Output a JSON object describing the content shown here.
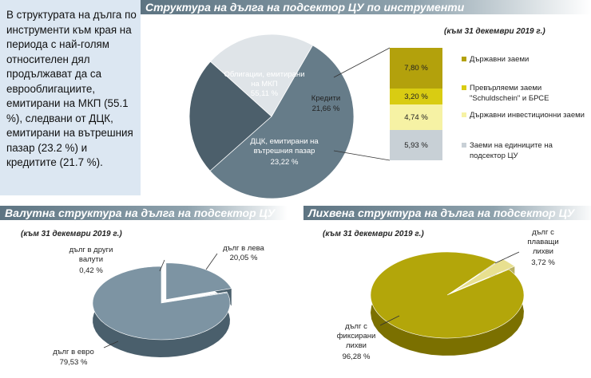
{
  "sidebar": {
    "text": "В структурата на дълга по инструменти към края на периода с най-голям относителен дял продължават да са еврооблигациите, емитирани на МКП (55.1 %), следвани от ДЦК, емитирани на вътрешния пазар (23.2 %) и кредитите (21.7 %)."
  },
  "colors": {
    "banner": "#5d7482",
    "pie_main_1": "#667c89",
    "pie_main_2": "#4c5f6b",
    "pie_main_3": "#dfe4e8",
    "stack_1": "#b3a10c",
    "stack_2": "#d9cc12",
    "stack_3": "#f6f2a4",
    "stack_4": "#c8d0d6",
    "currency_pie": "#7d94a3",
    "interest_pie": "#b3a60a"
  },
  "chart_data": [
    {
      "type": "pie",
      "title": "Структура на дълга на подсектор ЦУ по инструменти",
      "subtitle": "(към 31 декември 2019 г.)",
      "slices": [
        {
          "label": "Облигации, емитирани на МКП",
          "value": 55.11,
          "text": "55,11 %"
        },
        {
          "label": "ДЦК, емитирани на вътрешния пазар",
          "value": 23.22,
          "text": "23,22 %"
        },
        {
          "label": "Кредити",
          "value": 21.66,
          "text": "21,66 %"
        }
      ],
      "breakdown": {
        "type": "bar",
        "stacked": true,
        "series": [
          {
            "name": "Държавни заеми",
            "value": 7.8,
            "text": "7,80 %"
          },
          {
            "name": "Превърляеми заеми \"Schuldschein\" и БРСЕ",
            "value": 3.2,
            "text": "3,20 %"
          },
          {
            "name": "Държавни инвестиционни заеми",
            "value": 4.74,
            "text": "4,74 %"
          },
          {
            "name": "Заеми на единиците на подсектор ЦУ",
            "value": 5.93,
            "text": "5,93 %"
          }
        ]
      }
    },
    {
      "type": "pie",
      "title": "Валутна структура на дълга на подсектор ЦУ",
      "subtitle": "(към 31 декември 2019 г.)",
      "slices": [
        {
          "label": "дълг в лева",
          "value": 20.05,
          "text": "20,05 %"
        },
        {
          "label": "дълг в други валути",
          "value": 0.42,
          "text": "0,42 %"
        },
        {
          "label": "дълг в евро",
          "value": 79.53,
          "text": "79,53 %"
        }
      ]
    },
    {
      "type": "pie",
      "title": "Лихвена структура на дълга на подсектор ЦУ",
      "subtitle": "(към 31 декември 2019 г.)",
      "slices": [
        {
          "label": "дълг с плаващи лихви",
          "value": 3.72,
          "text": "3,72 %"
        },
        {
          "label": "дълг с фиксирани лихви",
          "value": 96.28,
          "text": "96,28 %"
        }
      ]
    }
  ]
}
